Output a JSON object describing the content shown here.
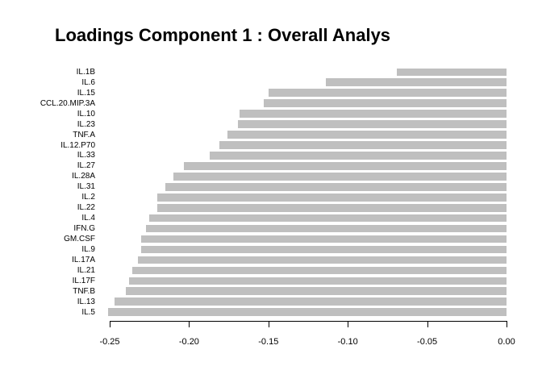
{
  "title": "Loadings Component 1 : Overall Analys",
  "chart_data": {
    "type": "bar",
    "orientation": "horizontal",
    "title": "Loadings Component 1 : Overall Analys",
    "categories": [
      "IL.1B",
      "IL.6",
      "IL.15",
      "CCL.20.MIP.3A",
      "IL.10",
      "IL.23",
      "TNF.A",
      "IL.12.P70",
      "IL.33",
      "IL.27",
      "IL.28A",
      "IL.31",
      "IL.2",
      "IL.22",
      "IL.4",
      "IFN.G",
      "GM.CSF",
      "IL.9",
      "IL.17A",
      "IL.21",
      "IL.17F",
      "TNF.B",
      "IL.13",
      "IL.5"
    ],
    "values": [
      -0.069,
      -0.114,
      -0.15,
      -0.153,
      -0.168,
      -0.169,
      -0.176,
      -0.181,
      -0.187,
      -0.203,
      -0.21,
      -0.215,
      -0.22,
      -0.22,
      -0.225,
      -0.227,
      -0.23,
      -0.23,
      -0.232,
      -0.236,
      -0.238,
      -0.24,
      -0.247,
      -0.251
    ],
    "bar_color": "#bfbfbf",
    "xlim": [
      -0.25,
      0.0
    ],
    "xticks": [
      -0.25,
      -0.2,
      -0.15,
      -0.1,
      -0.05,
      0.0
    ],
    "xtick_labels": [
      "-0.25",
      "-0.20",
      "-0.15",
      "-0.10",
      "-0.05",
      "0.00"
    ],
    "xlabel": "",
    "ylabel": "",
    "grid": false,
    "legend": false
  }
}
